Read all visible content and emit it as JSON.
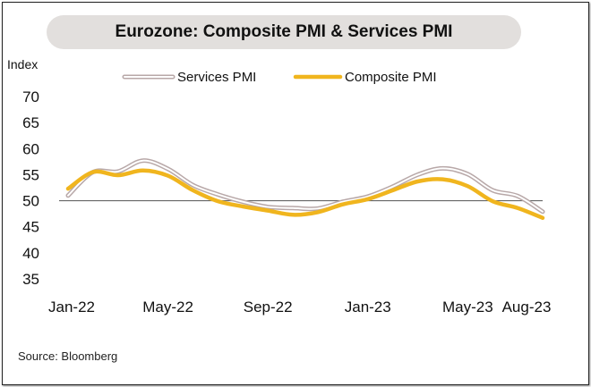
{
  "chart_data": {
    "type": "line",
    "title": "Eurozone: Composite PMI & Services PMI",
    "ylabel": "Index",
    "xlabel": "",
    "ylim": [
      35,
      70
    ],
    "yticks": [
      35,
      40,
      45,
      50,
      55,
      60,
      65,
      70
    ],
    "x": [
      "Jan-22",
      "Feb-22",
      "Mar-22",
      "Apr-22",
      "May-22",
      "Jun-22",
      "Jul-22",
      "Aug-22",
      "Sep-22",
      "Oct-22",
      "Nov-22",
      "Dec-22",
      "Jan-23",
      "Feb-23",
      "Mar-23",
      "Apr-23",
      "May-23",
      "Jun-23",
      "Jul-23",
      "Aug-23"
    ],
    "xtick_labels": [
      "Jan-22",
      "May-22",
      "Sep-22",
      "Jan-23",
      "May-23",
      "Aug-23"
    ],
    "reference_line": 50,
    "legend_position": "top-center",
    "series": [
      {
        "name": "Services PMI",
        "style": "outline",
        "color": "#b8a8a8",
        "values": [
          51.0,
          55.5,
          55.6,
          57.7,
          56.1,
          53.0,
          51.2,
          49.8,
          48.8,
          48.6,
          48.5,
          49.8,
          50.8,
          52.7,
          55.0,
          56.2,
          55.1,
          52.0,
          50.9,
          47.9
        ]
      },
      {
        "name": "Composite PMI",
        "style": "solid",
        "color": "#f0b51e",
        "values": [
          52.3,
          55.5,
          54.9,
          55.8,
          54.8,
          52.0,
          49.9,
          48.9,
          48.1,
          47.3,
          47.8,
          49.3,
          50.3,
          52.0,
          53.7,
          54.1,
          52.8,
          49.9,
          48.6,
          46.7
        ]
      }
    ]
  },
  "source": "Source: Bloomberg"
}
